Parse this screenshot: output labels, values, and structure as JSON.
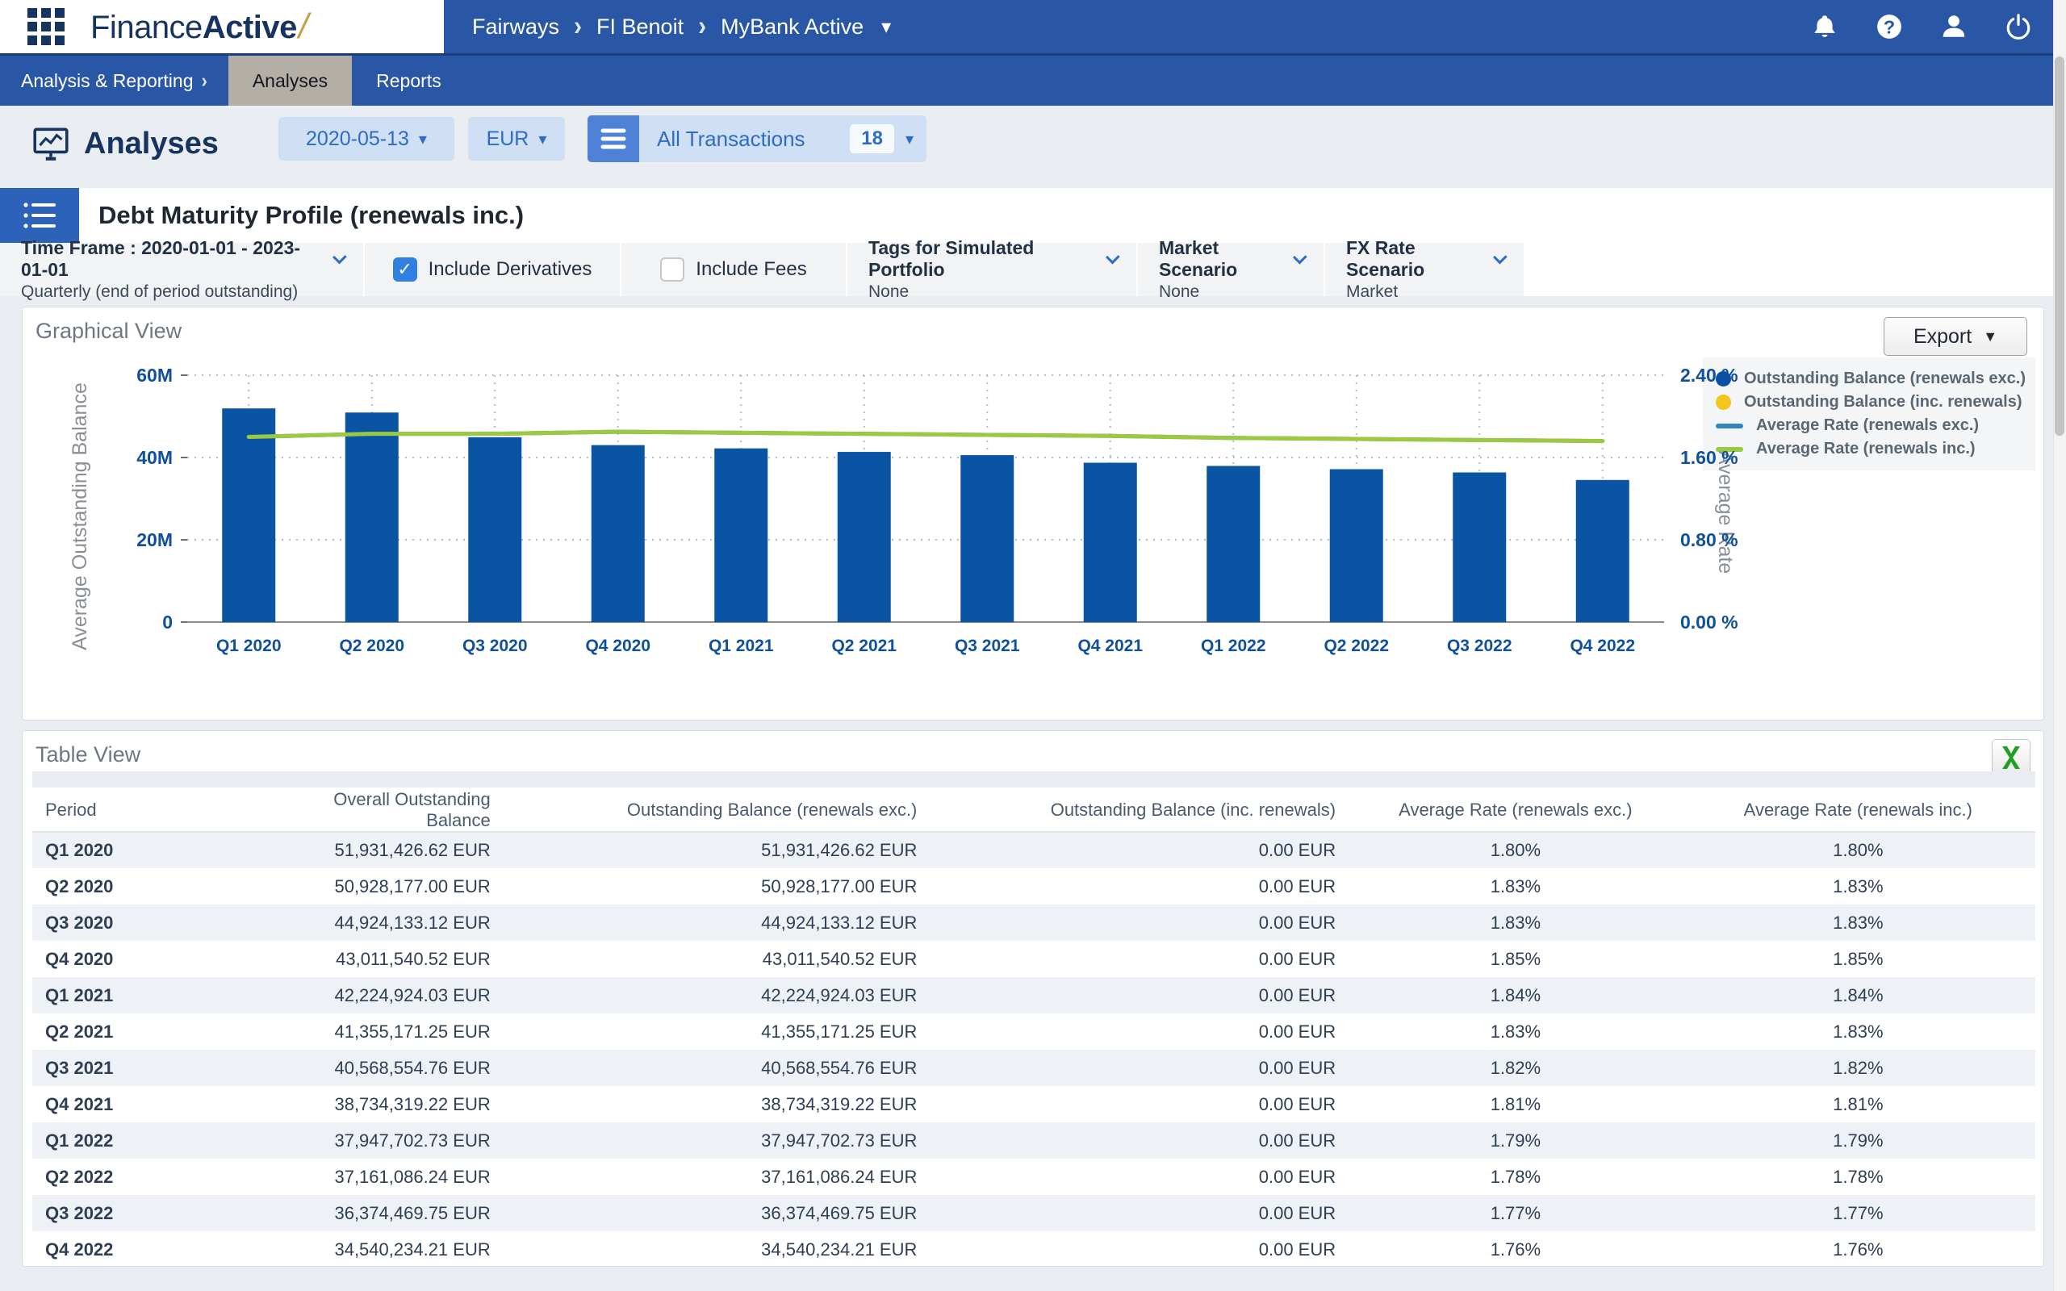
{
  "navbar": {
    "logo_part1": "Finance",
    "logo_part2": "Active",
    "logo_slash": "/",
    "breadcrumb": [
      "Fairways",
      "FI Benoit",
      "MyBank Active"
    ],
    "icons": [
      "notifications-bell",
      "help",
      "user",
      "power"
    ]
  },
  "tabs": {
    "menu_label": "Analysis & Reporting",
    "items": [
      {
        "label": "Analyses",
        "active": true
      },
      {
        "label": "Reports",
        "active": false
      }
    ]
  },
  "page_header": {
    "title": "Analyses",
    "date_value": "2020-05-13",
    "currency_value": "EUR",
    "transactions_label": "All Transactions",
    "transactions_count": "18"
  },
  "section": {
    "title": "Debt Maturity Profile (renewals inc.)"
  },
  "filters": {
    "time_frame_label": "Time Frame : 2020-01-01 - 2023-01-01",
    "time_frame_sub": "Quarterly (end of period outstanding)",
    "include_derivatives": {
      "label": "Include Derivatives",
      "checked": true,
      "checkmark": "✓"
    },
    "include_fees": {
      "label": "Include Fees",
      "checked": false
    },
    "tags_label": "Tags for Simulated Portfolio",
    "tags_value": "None",
    "market_label": "Market Scenario",
    "market_value": "None",
    "fx_label": "FX Rate Scenario",
    "fx_value": "Market"
  },
  "graphical": {
    "title": "Graphical View",
    "export_label": "Export",
    "legend": [
      {
        "marker": "dot",
        "color": "#0a4fa0",
        "label": "Outstanding Balance (renewals exc.)"
      },
      {
        "marker": "dot",
        "color": "#f5c51c",
        "label": "Outstanding Balance (inc. renewals)"
      },
      {
        "marker": "line",
        "color": "#2f86c4",
        "label": "Average Rate (renewals exc.)"
      },
      {
        "marker": "line",
        "color": "#9bca3e",
        "label": "Average Rate (renewals inc.)"
      }
    ]
  },
  "chart_data": {
    "type": "bar",
    "categories": [
      "Q1 2020",
      "Q2 2020",
      "Q3 2020",
      "Q4 2020",
      "Q1 2021",
      "Q2 2021",
      "Q3 2021",
      "Q4 2021",
      "Q1 2022",
      "Q2 2022",
      "Q3 2022",
      "Q4 2022"
    ],
    "series": [
      {
        "name": "Outstanding Balance (renewals exc.)",
        "type": "bar",
        "axis": "left",
        "color": "#0a55a3",
        "values": [
          51.93,
          50.93,
          44.92,
          43.01,
          42.22,
          41.36,
          40.57,
          38.73,
          37.95,
          37.16,
          36.37,
          34.54
        ]
      },
      {
        "name": "Outstanding Balance (inc. renewals)",
        "type": "bar",
        "axis": "left",
        "color": "#f5c51c",
        "values": [
          0,
          0,
          0,
          0,
          0,
          0,
          0,
          0,
          0,
          0,
          0,
          0
        ]
      },
      {
        "name": "Average Rate (renewals exc.)",
        "type": "line",
        "axis": "right",
        "color": "#2f86c4",
        "values": [
          1.8,
          1.83,
          1.83,
          1.85,
          1.84,
          1.83,
          1.82,
          1.81,
          1.79,
          1.78,
          1.77,
          1.76
        ]
      },
      {
        "name": "Average Rate (renewals inc.)",
        "type": "line",
        "axis": "right",
        "color": "#9bca3e",
        "values": [
          1.8,
          1.83,
          1.83,
          1.85,
          1.84,
          1.83,
          1.82,
          1.81,
          1.79,
          1.78,
          1.77,
          1.76
        ]
      }
    ],
    "left_axis": {
      "label": "Average Outstanding Balance",
      "ticks": [
        "0",
        "20M",
        "40M",
        "60M"
      ],
      "max": 60,
      "unit": "millions EUR"
    },
    "right_axis": {
      "label": "Average Rate",
      "ticks": [
        "0.00 %",
        "0.80 %",
        "1.60 %",
        "2.40 %"
      ],
      "max": 2.4
    },
    "grid": "dotted horizontal and vertical"
  },
  "table": {
    "title": "Table View",
    "columns": [
      "Period",
      "Overall Outstanding Balance",
      "Outstanding Balance (renewals exc.)",
      "Outstanding Balance (inc. renewals)",
      "Average Rate (renewals exc.)",
      "Average Rate (renewals inc.)"
    ],
    "rows": [
      [
        "Q1 2020",
        "51,931,426.62 EUR",
        "51,931,426.62 EUR",
        "0.00 EUR",
        "1.80%",
        "1.80%"
      ],
      [
        "Q2 2020",
        "50,928,177.00 EUR",
        "50,928,177.00 EUR",
        "0.00 EUR",
        "1.83%",
        "1.83%"
      ],
      [
        "Q3 2020",
        "44,924,133.12 EUR",
        "44,924,133.12 EUR",
        "0.00 EUR",
        "1.83%",
        "1.83%"
      ],
      [
        "Q4 2020",
        "43,011,540.52 EUR",
        "43,011,540.52 EUR",
        "0.00 EUR",
        "1.85%",
        "1.85%"
      ],
      [
        "Q1 2021",
        "42,224,924.03 EUR",
        "42,224,924.03 EUR",
        "0.00 EUR",
        "1.84%",
        "1.84%"
      ],
      [
        "Q2 2021",
        "41,355,171.25 EUR",
        "41,355,171.25 EUR",
        "0.00 EUR",
        "1.83%",
        "1.83%"
      ],
      [
        "Q3 2021",
        "40,568,554.76 EUR",
        "40,568,554.76 EUR",
        "0.00 EUR",
        "1.82%",
        "1.82%"
      ],
      [
        "Q4 2021",
        "38,734,319.22 EUR",
        "38,734,319.22 EUR",
        "0.00 EUR",
        "1.81%",
        "1.81%"
      ],
      [
        "Q1 2022",
        "37,947,702.73 EUR",
        "37,947,702.73 EUR",
        "0.00 EUR",
        "1.79%",
        "1.79%"
      ],
      [
        "Q2 2022",
        "37,161,086.24 EUR",
        "37,161,086.24 EUR",
        "0.00 EUR",
        "1.78%",
        "1.78%"
      ],
      [
        "Q3 2022",
        "36,374,469.75 EUR",
        "36,374,469.75 EUR",
        "0.00 EUR",
        "1.77%",
        "1.77%"
      ],
      [
        "Q4 2022",
        "34,540,234.21 EUR",
        "34,540,234.21 EUR",
        "0.00 EUR",
        "1.76%",
        "1.76%"
      ]
    ]
  }
}
